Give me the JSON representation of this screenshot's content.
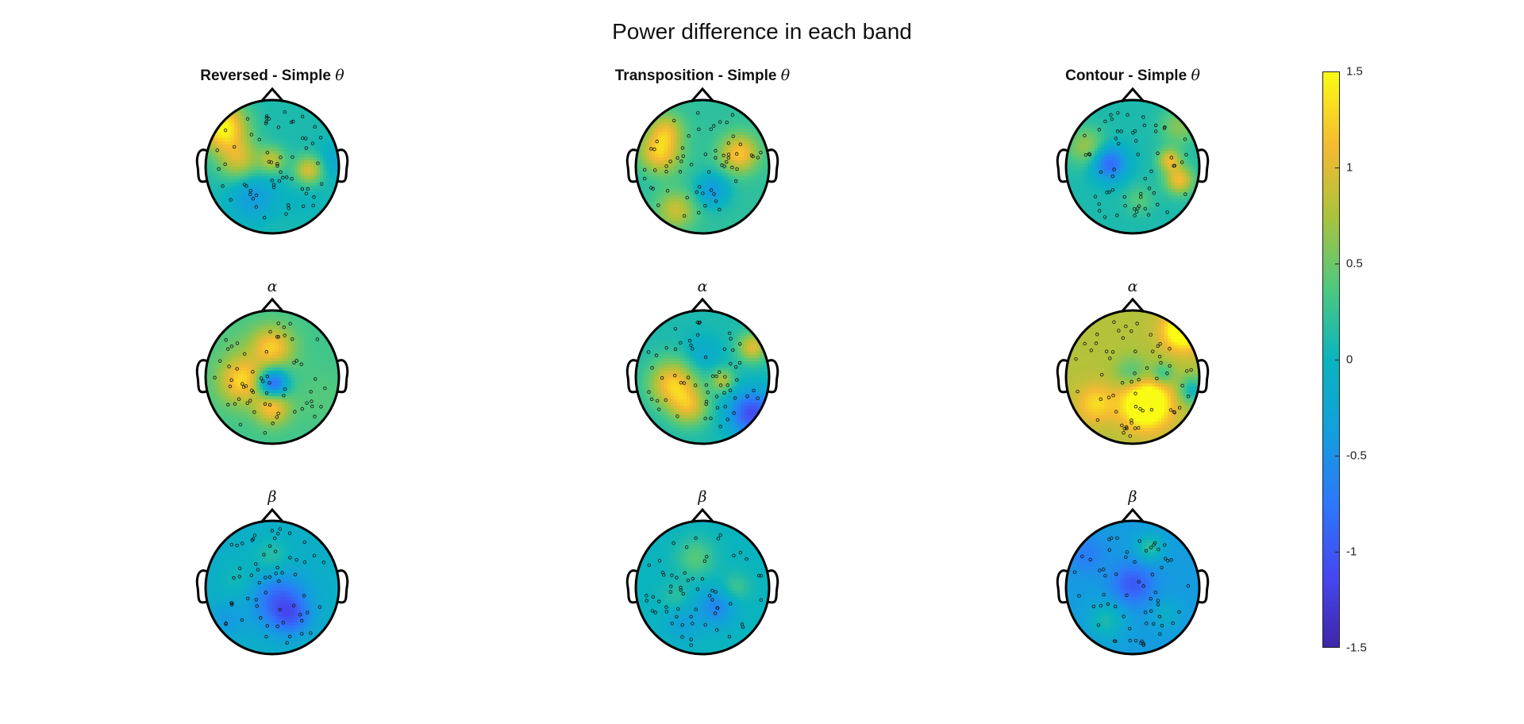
{
  "title": "Power difference in each band",
  "chart_data": {
    "type": "heatmap",
    "title": "Power difference in each band",
    "colormap": "parula",
    "colorbar": {
      "range": [
        -1.5,
        1.5
      ],
      "ticks": [
        "1.5",
        "1",
        "0.5",
        "0",
        "-0.5",
        "-1",
        "-1.5"
      ]
    },
    "columns": [
      "Reversed - Simple",
      "Transposition - Simple",
      "Contour - Simple"
    ],
    "bands": [
      "θ",
      "α",
      "β"
    ],
    "maps": [
      {
        "column": "Reversed - Simple",
        "band": "θ",
        "base": 0.1,
        "blobs": [
          [
            -0.75,
            -0.6,
            1.4,
            0.25
          ],
          [
            -0.5,
            -0.1,
            0.8,
            0.22
          ],
          [
            0.0,
            -0.1,
            0.7,
            0.14
          ],
          [
            0.55,
            0.05,
            0.9,
            0.15
          ],
          [
            0.95,
            -0.1,
            -0.3,
            0.2
          ],
          [
            -0.3,
            0.45,
            -0.5,
            0.25
          ],
          [
            0.5,
            0.5,
            -0.1,
            0.25
          ]
        ]
      },
      {
        "column": "Transposition - Simple",
        "band": "θ",
        "base": 0.2,
        "blobs": [
          [
            -0.65,
            -0.2,
            1.0,
            0.22
          ],
          [
            -0.55,
            -0.55,
            0.7,
            0.18
          ],
          [
            0.55,
            -0.2,
            1.0,
            0.2
          ],
          [
            0.15,
            0.35,
            -0.6,
            0.18
          ],
          [
            -0.4,
            0.65,
            0.7,
            0.2
          ],
          [
            -0.9,
            0.1,
            -0.1,
            0.2
          ]
        ]
      },
      {
        "column": "Contour - Simple",
        "band": "θ",
        "base": 0.1,
        "blobs": [
          [
            -0.35,
            -0.05,
            -1.0,
            0.18
          ],
          [
            0.55,
            -0.1,
            0.9,
            0.12
          ],
          [
            0.7,
            0.2,
            1.0,
            0.15
          ],
          [
            -0.7,
            -0.3,
            0.6,
            0.2
          ],
          [
            0.1,
            0.5,
            0.3,
            0.15
          ],
          [
            0.7,
            -0.6,
            0.5,
            0.2
          ]
        ]
      },
      {
        "column": "Reversed - Simple",
        "band": "α",
        "base": 0.3,
        "blobs": [
          [
            0.0,
            0.1,
            -1.4,
            0.16
          ],
          [
            -0.45,
            0.05,
            1.0,
            0.25
          ],
          [
            0.0,
            -0.45,
            0.9,
            0.22
          ],
          [
            0.0,
            0.45,
            0.9,
            0.18
          ],
          [
            0.7,
            0.3,
            0.1,
            0.3
          ],
          [
            -0.5,
            -0.5,
            0.1,
            0.25
          ]
        ]
      },
      {
        "column": "Transposition - Simple",
        "band": "α",
        "base": 0.1,
        "blobs": [
          [
            -0.45,
            0.1,
            1.1,
            0.25
          ],
          [
            -0.2,
            0.45,
            0.8,
            0.2
          ],
          [
            0.75,
            -0.45,
            0.9,
            0.15
          ],
          [
            0.75,
            0.55,
            -1.2,
            0.25
          ],
          [
            0.3,
            0.05,
            0.7,
            0.12
          ],
          [
            0.0,
            -0.35,
            -0.3,
            0.2
          ]
        ]
      },
      {
        "column": "Contour - Simple",
        "band": "α",
        "base": 0.8,
        "blobs": [
          [
            0.2,
            0.4,
            1.3,
            0.25
          ],
          [
            0.75,
            -0.7,
            1.1,
            0.2
          ],
          [
            0.0,
            -0.05,
            -0.5,
            0.18
          ],
          [
            0.45,
            -0.05,
            -0.6,
            0.12
          ],
          [
            0.9,
            0.2,
            -0.8,
            0.15
          ],
          [
            -0.55,
            0.4,
            0.5,
            0.2
          ]
        ]
      },
      {
        "column": "Reversed - Simple",
        "band": "β",
        "base": -0.1,
        "blobs": [
          [
            0.1,
            0.2,
            -0.8,
            0.3
          ],
          [
            0.3,
            0.45,
            -0.5,
            0.2
          ],
          [
            0.0,
            -0.45,
            0.3,
            0.2
          ],
          [
            -0.5,
            -0.1,
            0.2,
            0.2
          ],
          [
            -0.7,
            0.5,
            -0.3,
            0.2
          ]
        ]
      },
      {
        "column": "Transposition - Simple",
        "band": "β",
        "base": 0.0,
        "blobs": [
          [
            -0.1,
            -0.45,
            0.4,
            0.2
          ],
          [
            0.2,
            0.3,
            -0.6,
            0.2
          ],
          [
            0.5,
            0.0,
            0.3,
            0.15
          ],
          [
            -0.4,
            0.15,
            0.2,
            0.15
          ],
          [
            -0.3,
            0.55,
            -0.3,
            0.2
          ]
        ]
      },
      {
        "column": "Contour - Simple",
        "band": "β",
        "base": -0.4,
        "blobs": [
          [
            0.0,
            -0.05,
            -0.6,
            0.22
          ],
          [
            0.25,
            -0.6,
            0.6,
            0.15
          ],
          [
            -0.4,
            0.5,
            0.5,
            0.2
          ],
          [
            0.5,
            0.4,
            0.3,
            0.15
          ],
          [
            -0.7,
            -0.5,
            -0.3,
            0.2
          ]
        ]
      }
    ]
  }
}
